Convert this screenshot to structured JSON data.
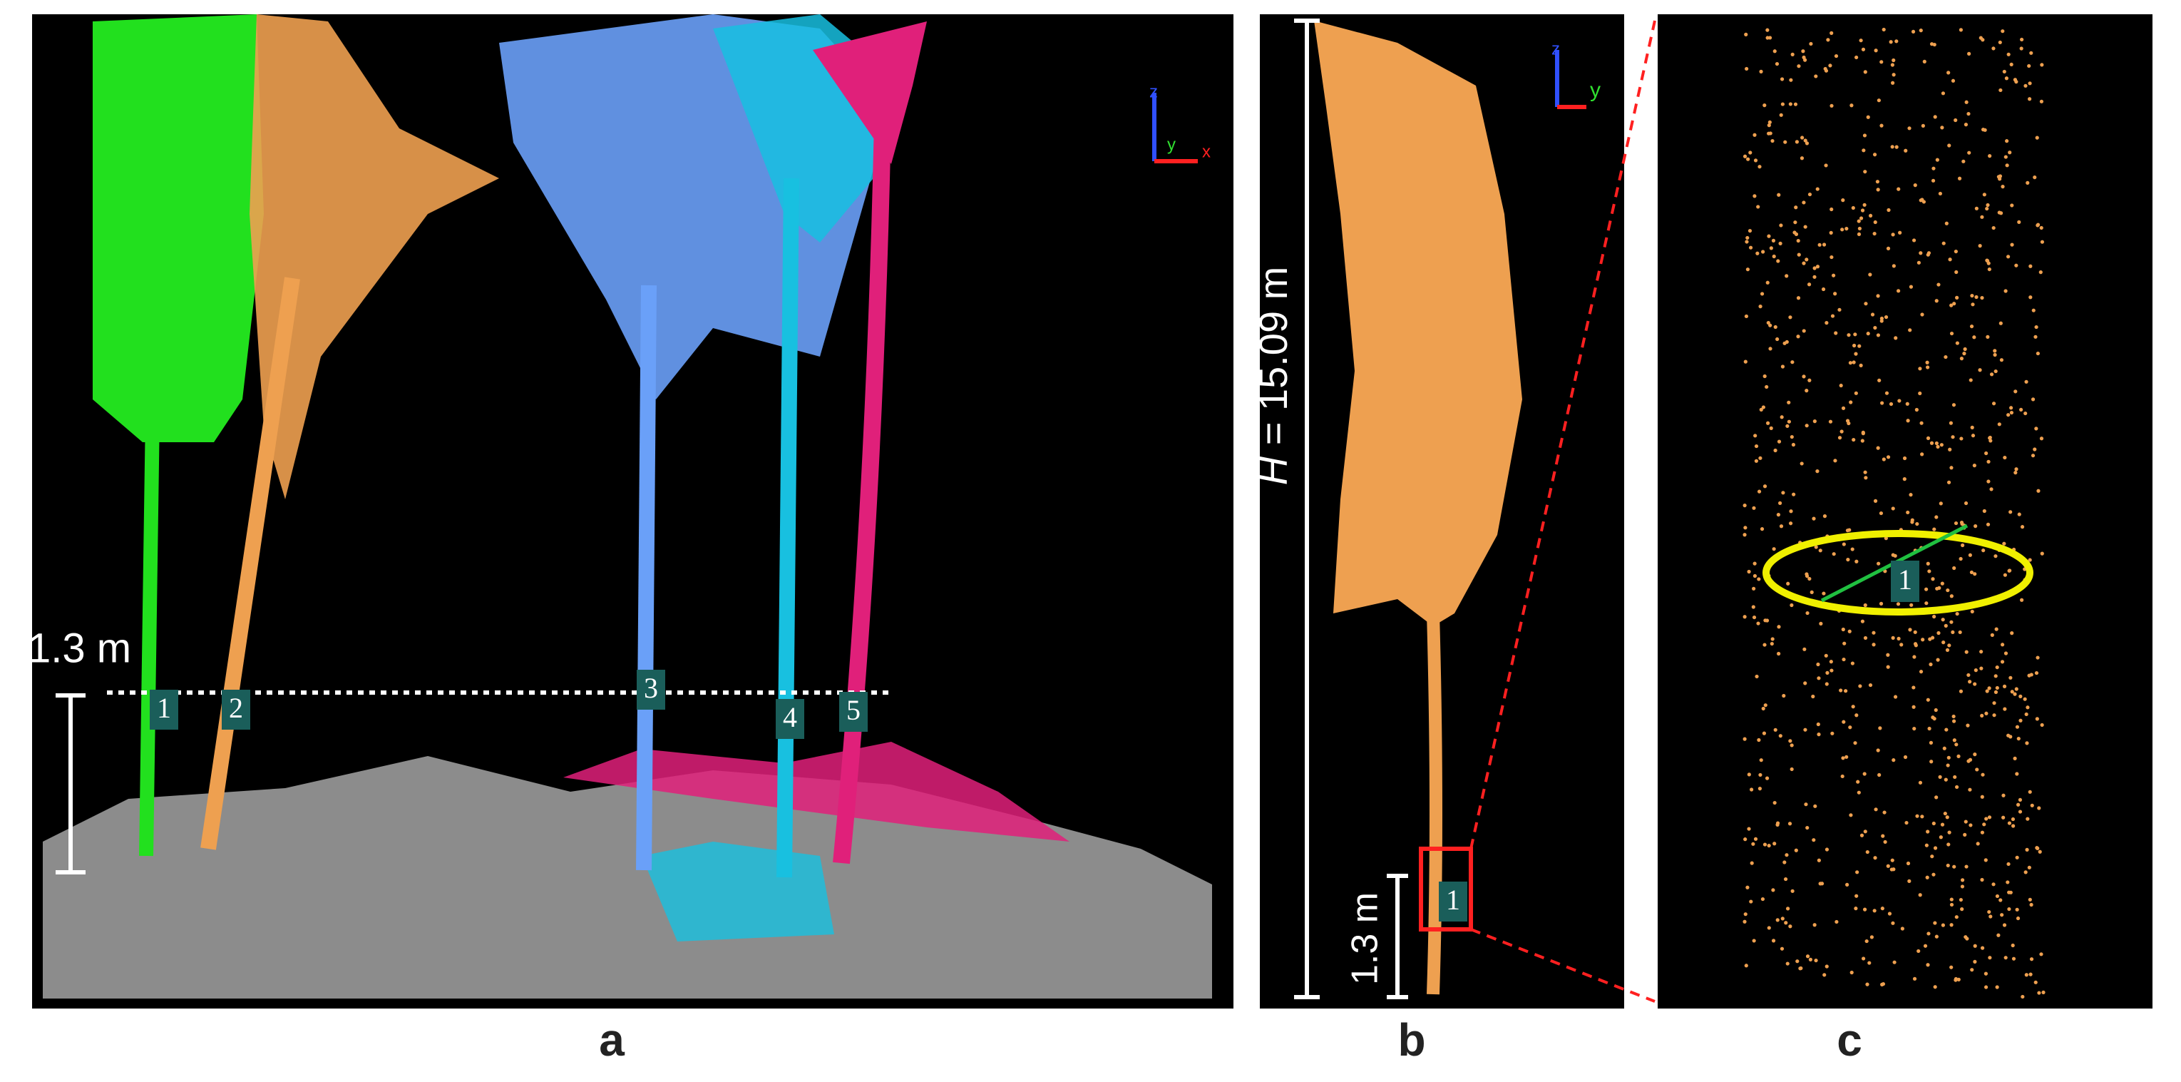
{
  "panel_a": {
    "label": "a",
    "height_label": "1.3 m",
    "stem_labels": [
      "1",
      "2",
      "3",
      "4",
      "5"
    ],
    "axis_letters": [
      "z",
      "y",
      "x"
    ]
  },
  "panel_b": {
    "label": "b",
    "height_symbol": "H",
    "height_value": " = 15.09 m",
    "breast_label": "1.3 m",
    "stem_label": "1",
    "axis_letters": [
      "z",
      "y"
    ]
  },
  "panel_c": {
    "label": "c",
    "stem_label": "1"
  }
}
